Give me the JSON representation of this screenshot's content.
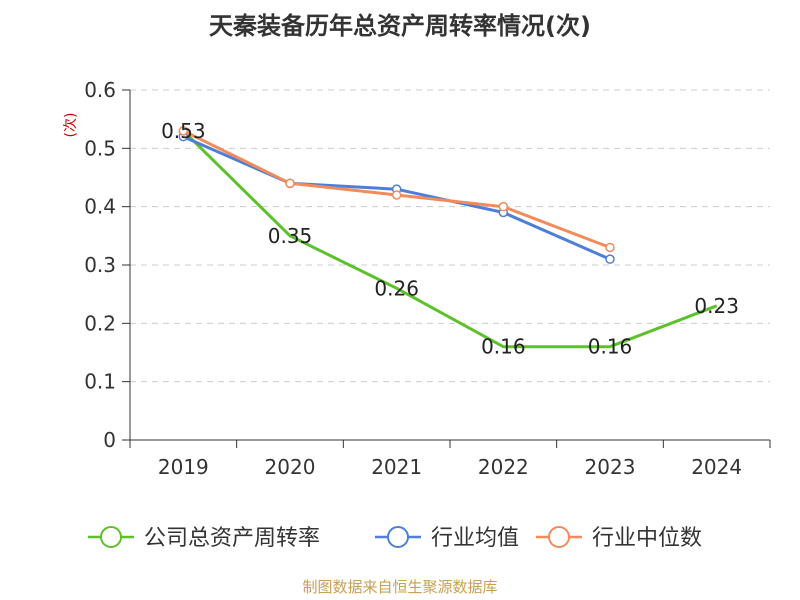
{
  "chart_data": {
    "type": "line",
    "title": "天秦装备历年总资产周转率情况(次)",
    "ylabel": "(次)",
    "xlabel": "",
    "categories": [
      "2019",
      "2020",
      "2021",
      "2022",
      "2023",
      "2024"
    ],
    "ylim": [
      0,
      0.6
    ],
    "yticks": [
      0,
      0.1,
      0.2,
      0.3,
      0.4,
      0.5,
      0.6
    ],
    "ytick_labels": [
      "0",
      "0.1",
      "0.2",
      "0.3",
      "0.4",
      "0.5",
      "0.6"
    ],
    "grid": true,
    "legend_position": "bottom",
    "series": [
      {
        "name": "公司总资产周转率",
        "color": "#5cc12b",
        "values": [
          0.53,
          0.35,
          0.26,
          0.16,
          0.16,
          0.23
        ],
        "labels": [
          "0.53",
          "0.35",
          "0.26",
          "0.16",
          "0.16",
          "0.23"
        ],
        "markers": [
          true,
          false,
          false,
          false,
          false,
          false
        ]
      },
      {
        "name": "行业均值",
        "color": "#4e7fd6",
        "values": [
          0.52,
          0.44,
          0.43,
          0.39,
          0.31,
          null
        ]
      },
      {
        "name": "行业中位数",
        "color": "#f28b5b",
        "values": [
          0.53,
          0.44,
          0.42,
          0.4,
          0.33,
          null
        ]
      }
    ]
  },
  "source": "制图数据来自恒生聚源数据库",
  "colors": {
    "axis": "#333333",
    "grid": "#cccccc",
    "ylabel": "#cc0000",
    "source": "#c8a050"
  }
}
